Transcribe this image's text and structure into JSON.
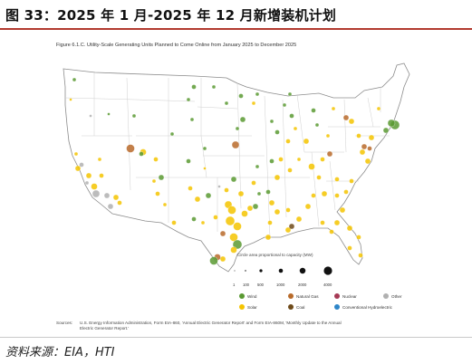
{
  "figure_title": "图 33：2025 年 1 月-2025 年 12 月新增装机计划",
  "map_title": "Figure 6.1.C. Utility-Scale Generating Units Planned to Come Online from January 2025 to December 2025",
  "legend": {
    "size_heading": "Circle area proportional to capacity (MW)",
    "size_values": [
      "1",
      "100",
      "500",
      "1000",
      "2000",
      "4000"
    ],
    "size_levels": [
      1,
      100,
      500,
      1000,
      2000,
      4000
    ],
    "fuels": [
      {
        "label": "Wind",
        "color": "#5a9a32"
      },
      {
        "label": "Natural Gas",
        "color": "#b86a2a"
      },
      {
        "label": "Nuclear",
        "color": "#a63a55"
      },
      {
        "label": "Other",
        "color": "#b0b0b0"
      },
      {
        "label": "Solar",
        "color": "#f5c400"
      },
      {
        "label": "Coal",
        "color": "#6e4a1a"
      },
      {
        "label": "Conventional Hydroelectric",
        "color": "#2e86c8"
      }
    ]
  },
  "sources": {
    "label": "Sources:",
    "text": "U.S. Energy Information Administration, Form EIA-860, 'Annual Electric Generator Report' and Form EIA-860M, 'Monthly Update to the Annual Electric Generator Report.'"
  },
  "source_note": "资料来源：EIA，HTI",
  "colors": {
    "wind": "#5a9a32",
    "solar": "#f5c400",
    "gas": "#b86a2a",
    "other": "#b0b0b0",
    "coal": "#6e4a1a",
    "nuclear": "#a63a55",
    "hydro": "#2e86c8",
    "rule": "#b23a2f"
  }
}
